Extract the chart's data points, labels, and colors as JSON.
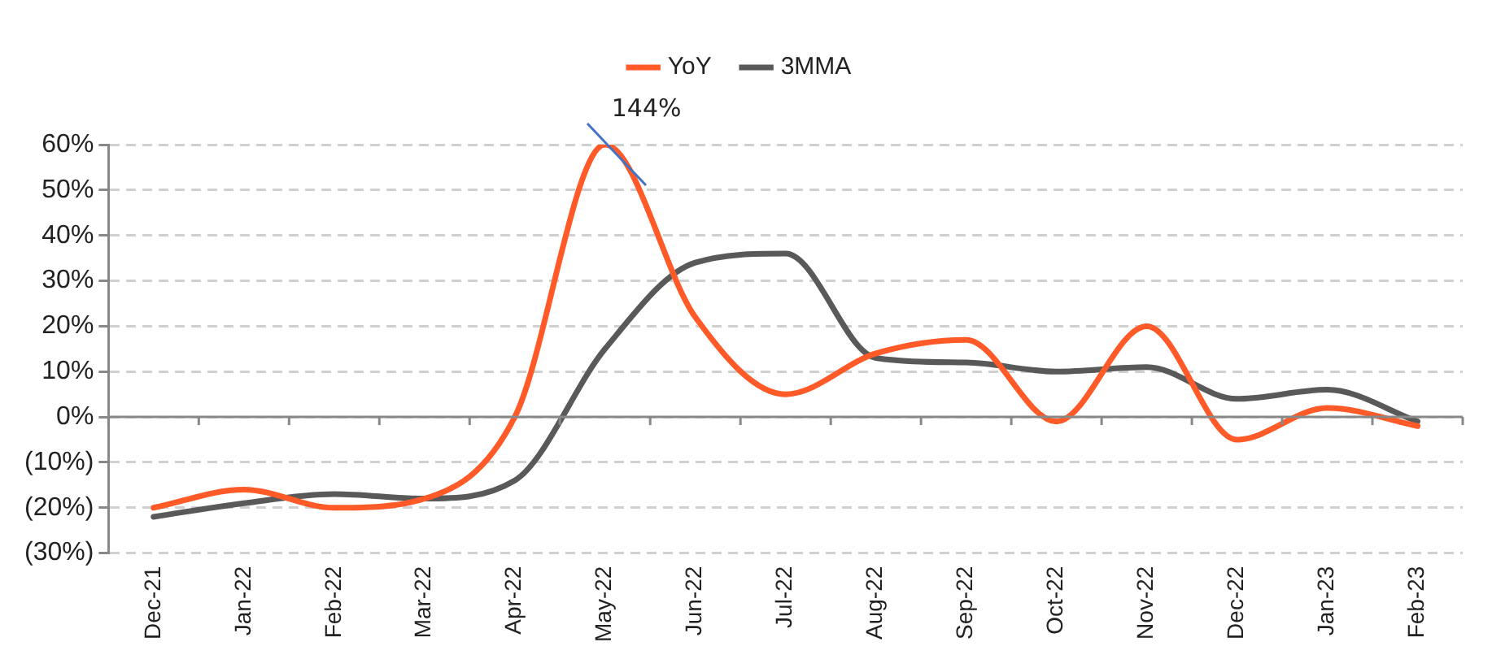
{
  "chart_data": {
    "type": "line",
    "categories": [
      "Dec-21",
      "Jan-22",
      "Feb-22",
      "Mar-22",
      "Apr-22",
      "May-22",
      "Jun-22",
      "Jul-22",
      "Aug-22",
      "Sep-22",
      "Oct-22",
      "Nov-22",
      "Dec-22",
      "Jan-23",
      "Feb-23"
    ],
    "series": [
      {
        "name": "YoY",
        "color": "#ff5a28",
        "values": [
          -20,
          -16,
          -20,
          -18,
          0,
          60,
          22,
          5,
          14,
          17,
          -1,
          20,
          -5,
          2,
          -2
        ]
      },
      {
        "name": "3MMA",
        "color": "#595959",
        "values": [
          -22,
          -19,
          -17,
          -18,
          -14,
          15,
          34,
          36,
          13,
          12,
          10,
          11,
          4,
          6,
          -1
        ]
      }
    ],
    "ylim": [
      -30,
      60
    ],
    "yticks": [
      {
        "value": -30,
        "label": "(30%)"
      },
      {
        "value": -20,
        "label": "(20%)"
      },
      {
        "value": -10,
        "label": "(10%)"
      },
      {
        "value": 0,
        "label": "0%"
      },
      {
        "value": 10,
        "label": "10%"
      },
      {
        "value": 20,
        "label": "20%"
      },
      {
        "value": 30,
        "label": "30%"
      },
      {
        "value": 40,
        "label": "40%"
      },
      {
        "value": 50,
        "label": "50%"
      },
      {
        "value": 60,
        "label": "60%"
      }
    ],
    "grid": "y",
    "legend": "top",
    "marker": "none",
    "line_style": "solid",
    "annotations": [
      {
        "text": "144%",
        "x": "May-22",
        "y": 60
      }
    ]
  }
}
